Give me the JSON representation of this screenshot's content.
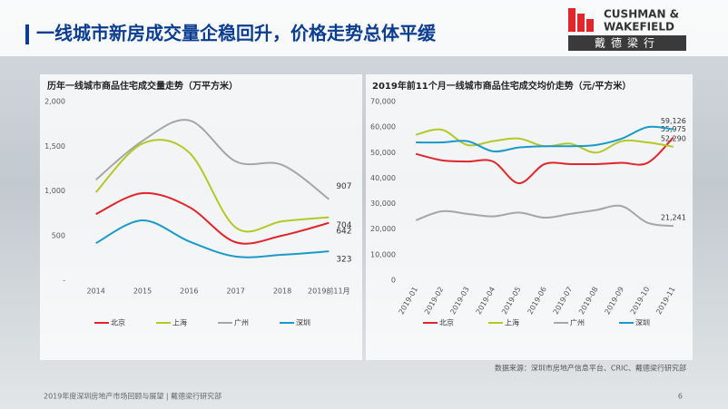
{
  "header": {
    "title": "一线城市新房成交量企稳回升，价格走势总体平缓",
    "logo": {
      "line1": "CUSHMAN &",
      "line2": "WAKEFIELD",
      "chinese": "戴德梁行"
    }
  },
  "chart_data": [
    {
      "type": "line",
      "title": "历年一线城市商品住宅成交量走势（万平方米）",
      "categories": [
        "2014",
        "2015",
        "2016",
        "2017",
        "2018",
        "2019前11月"
      ],
      "ylim": [
        0,
        2000
      ],
      "yticks": [
        {
          "value": 0,
          "label": "-"
        },
        500,
        {
          "value": 1000,
          "label": "1,000"
        },
        {
          "value": 1500,
          "label": "1,500"
        },
        {
          "value": 2000,
          "label": "2,000"
        }
      ],
      "series": [
        {
          "name": "北京",
          "color": "#e0262b",
          "values": [
            740,
            975,
            820,
            425,
            500,
            642
          ]
        },
        {
          "name": "上海",
          "color": "#b5c827",
          "values": [
            985,
            1530,
            1430,
            590,
            660,
            704
          ]
        },
        {
          "name": "广州",
          "color": "#a6a6a6",
          "values": [
            1125,
            1560,
            1790,
            1330,
            1290,
            907
          ]
        },
        {
          "name": "深圳",
          "color": "#1a9ac8",
          "values": [
            415,
            670,
            435,
            265,
            285,
            323
          ]
        }
      ]
    },
    {
      "type": "line",
      "title": "2019年前11个月一线城市商品住宅成交均价走势（元/平方米）",
      "categories": [
        "2019-01",
        "2019-02",
        "2019-03",
        "2019-04",
        "2019-05",
        "2019-06",
        "2019-07",
        "2019-08",
        "2019-09",
        "2019-10",
        "2019-11"
      ],
      "ylim": [
        0,
        70000
      ],
      "yticks": [
        0,
        {
          "value": 10000,
          "label": "10,000"
        },
        {
          "value": 20000,
          "label": "20,000"
        },
        {
          "value": 30000,
          "label": "30,000"
        },
        {
          "value": 40000,
          "label": "40,000"
        },
        {
          "value": 50000,
          "label": "50,000"
        },
        {
          "value": 60000,
          "label": "60,000"
        },
        {
          "value": 70000,
          "label": "70,000"
        }
      ],
      "series": [
        {
          "name": "北京",
          "color": "#e0262b",
          "values": [
            49500,
            47000,
            46500,
            46500,
            38000,
            45500,
            45500,
            45500,
            46000,
            46000,
            55975
          ],
          "value_labels": [
            null,
            null,
            null,
            null,
            null,
            null,
            null,
            null,
            null,
            null,
            "55,975"
          ]
        },
        {
          "name": "上海",
          "color": "#b5c827",
          "values": [
            57000,
            59000,
            53000,
            54500,
            55500,
            52500,
            53500,
            50000,
            54500,
            54000,
            52290
          ],
          "value_labels": [
            null,
            null,
            null,
            null,
            null,
            null,
            null,
            null,
            null,
            null,
            "52,290"
          ]
        },
        {
          "name": "广州",
          "color": "#a6a6a6",
          "values": [
            23500,
            27000,
            26000,
            25000,
            26500,
            24500,
            26000,
            27500,
            29000,
            22500,
            21241
          ],
          "value_labels": [
            null,
            null,
            null,
            null,
            null,
            null,
            null,
            null,
            null,
            null,
            "21,241"
          ]
        },
        {
          "name": "深圳",
          "color": "#1a9ac8",
          "values": [
            54000,
            54000,
            54500,
            50500,
            52000,
            52500,
            52500,
            53000,
            55500,
            60000,
            59126
          ],
          "value_labels": [
            null,
            null,
            null,
            null,
            null,
            null,
            null,
            null,
            null,
            null,
            "59,126"
          ]
        }
      ]
    }
  ],
  "footer": {
    "source": "数据来源：深圳市房地产信息平台、CRIC、戴德梁行研究部",
    "text": "2019年度深圳房地产市场回顾与展望 | 戴德梁行研究部",
    "page": "6"
  }
}
